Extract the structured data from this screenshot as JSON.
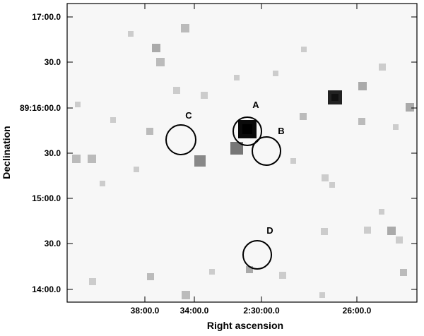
{
  "chart_data": {
    "type": "scatter",
    "xlabel": "Right ascension",
    "ylabel": "Declination",
    "x_ticks": [
      "38:00.0",
      "34:00.0",
      "2:30:00.0",
      "26:00.0"
    ],
    "y_ticks": [
      "17:00.0",
      "30.0",
      "89:16:00.0",
      "30.0",
      "15:00.0",
      "30.0",
      "14:00.0"
    ],
    "circles": [
      {
        "label": "A"
      },
      {
        "label": "B"
      },
      {
        "label": "C"
      },
      {
        "label": "D"
      }
    ],
    "colors": {
      "frame": "#000000",
      "background": "#f7f7f7",
      "circle": "#000000"
    }
  }
}
